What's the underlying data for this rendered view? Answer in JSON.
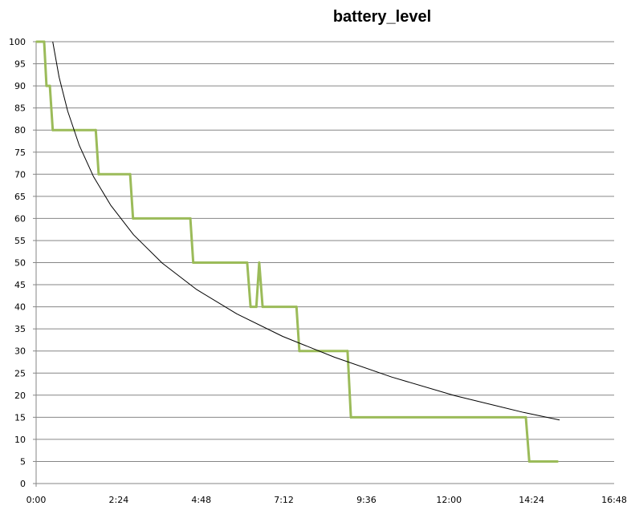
{
  "chart_data": {
    "type": "line",
    "title": "battery_level",
    "xlabel": "",
    "ylabel": "",
    "xlim": [
      "0:00",
      "16:48"
    ],
    "ylim": [
      0,
      100
    ],
    "x_ticks": [
      "0:00",
      "2:24",
      "4:48",
      "7:12",
      "9:36",
      "12:00",
      "14:24",
      "16:48"
    ],
    "y_ticks": [
      0,
      5,
      10,
      15,
      20,
      25,
      30,
      35,
      40,
      45,
      50,
      55,
      60,
      65,
      70,
      75,
      80,
      85,
      90,
      95,
      100
    ],
    "grid": "horizontal",
    "legend": "none",
    "series": [
      {
        "color": "#9bbb59",
        "x": [
          "0:01",
          "0:14",
          "0:18",
          "0:24",
          "0:29",
          "1:44",
          "1:49",
          "2:44",
          "2:49",
          "4:29",
          "4:34",
          "6:08",
          "6:14",
          "6:24",
          "6:29",
          "6:35",
          "7:34",
          "7:39",
          "9:03",
          "9:09",
          "14:14",
          "14:20",
          "15:09"
        ],
        "y": [
          100,
          100,
          90,
          90,
          80,
          80,
          70,
          70,
          60,
          60,
          50,
          50,
          40,
          40,
          50,
          40,
          40,
          30,
          30,
          15,
          15,
          5,
          5
        ]
      },
      {
        "type": "trendline-logarithmic",
        "color": "#000000",
        "x": [
          "0:29",
          "0:40",
          "0:55",
          "1:15",
          "1:40",
          "2:10",
          "2:50",
          "3:40",
          "4:40",
          "5:50",
          "7:10",
          "8:40",
          "10:20",
          "12:10",
          "14:10",
          "15:13"
        ],
        "y": [
          100,
          92,
          84.3,
          76.6,
          69.5,
          63,
          56.3,
          49.9,
          43.9,
          38.4,
          33.3,
          28.6,
          24.1,
          19.9,
          16.1,
          14.4
        ]
      }
    ]
  }
}
